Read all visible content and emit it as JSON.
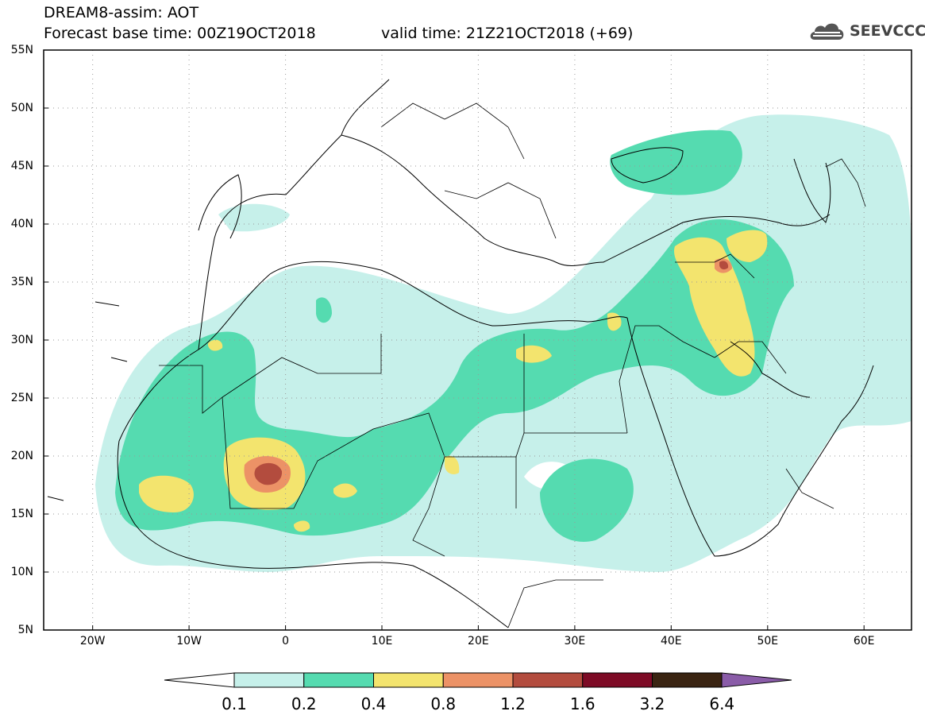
{
  "header": {
    "title_line1": "DREAM8-assim: AOT",
    "title_line2": "Forecast base time: 00Z19OCT2018",
    "title_line3": "valid time: 21Z21OCT2018 (+69)",
    "logo_text": "SEEVCCC"
  },
  "map": {
    "lat_labels": [
      "55N",
      "50N",
      "45N",
      "40N",
      "35N",
      "30N",
      "25N",
      "20N",
      "15N",
      "10N",
      "5N"
    ],
    "lon_labels": [
      "20W",
      "10W",
      "0",
      "10E",
      "20E",
      "30E",
      "40E",
      "50E",
      "60E"
    ],
    "lon_range": [
      -25,
      65
    ],
    "lat_range": [
      5,
      55
    ]
  },
  "colorbar": {
    "levels": [
      "0.1",
      "0.2",
      "0.4",
      "0.8",
      "1.2",
      "1.6",
      "3.2",
      "6.4"
    ],
    "colors": [
      "#ffffff",
      "#c6f0ea",
      "#55dbb0",
      "#f3e46e",
      "#ec9266",
      "#b34c3e",
      "#7d0a25",
      "#3a2412",
      "#8a5ca8"
    ]
  }
}
